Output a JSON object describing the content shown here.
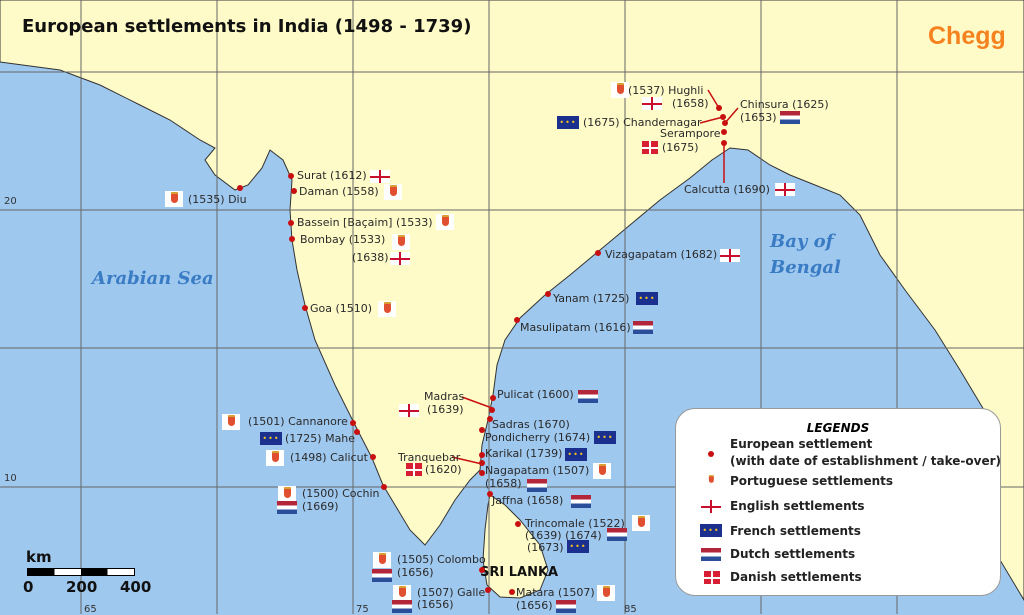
{
  "title": "European settlements in India (1498 - 1739)",
  "brand": "Chegg",
  "colors": {
    "sea": "#9fc8ef",
    "land": "#fffbc8",
    "settlement_dot": "#c81010",
    "brand": "#f5821f",
    "sea_label": "#3a7cc4"
  },
  "seas": {
    "arabian": "Arabian Sea",
    "bay_line1": "Bay of",
    "bay_line2": "Bengal"
  },
  "country_label": "SRI LANKA",
  "grid": {
    "lat_labels": [
      "20",
      "10"
    ],
    "lon_labels": [
      "65",
      "75",
      "85"
    ]
  },
  "scale": {
    "unit": "km",
    "ticks": [
      "0",
      "200",
      "400"
    ]
  },
  "settlements": [
    {
      "name": "Hughli",
      "texts": [
        "(1537) Hughli",
        "(1658)"
      ],
      "flags": [
        "portuguese",
        "english"
      ]
    },
    {
      "name": "Chandernagar",
      "texts": [
        "(1675) Chandernagar"
      ],
      "flags": [
        "french"
      ]
    },
    {
      "name": "Chinsura",
      "texts": [
        "Chinsura (1625)",
        "(1653)"
      ],
      "flags": [
        "dutch"
      ]
    },
    {
      "name": "Serampore",
      "texts": [
        "Serampore",
        "(1675)"
      ],
      "flags": [
        "danish"
      ]
    },
    {
      "name": "Calcutta",
      "texts": [
        "Calcutta (1690)"
      ],
      "flags": [
        "english"
      ]
    },
    {
      "name": "Surat",
      "texts": [
        "Surat (1612)"
      ],
      "flags": [
        "english"
      ]
    },
    {
      "name": "Daman",
      "texts": [
        "Daman (1558)"
      ],
      "flags": [
        "portuguese"
      ]
    },
    {
      "name": "Diu",
      "texts": [
        "(1535) Diu"
      ],
      "flags": [
        "portuguese"
      ]
    },
    {
      "name": "Bassein",
      "texts": [
        "Bassein [Baçaim] (1533)"
      ],
      "flags": [
        "portuguese"
      ]
    },
    {
      "name": "Bombay",
      "texts": [
        "Bombay (1533)",
        "(1638)"
      ],
      "flags": [
        "portuguese",
        "english"
      ]
    },
    {
      "name": "Goa",
      "texts": [
        "Goa (1510)"
      ],
      "flags": [
        "portuguese"
      ]
    },
    {
      "name": "Vizagapatam",
      "texts": [
        "Vizagapatam (1682)"
      ],
      "flags": [
        "english"
      ]
    },
    {
      "name": "Yanam",
      "texts": [
        "Yanam (1725)"
      ],
      "flags": [
        "french"
      ]
    },
    {
      "name": "Masulipatam",
      "texts": [
        "Masulipatam (1616)"
      ],
      "flags": [
        "dutch"
      ]
    },
    {
      "name": "Cannanore",
      "texts": [
        "(1501) Cannanore"
      ],
      "flags": [
        "portuguese"
      ]
    },
    {
      "name": "Mahe",
      "texts": [
        "(1725) Mahe"
      ],
      "flags": [
        "french"
      ]
    },
    {
      "name": "Calicut",
      "texts": [
        "(1498) Calicut"
      ],
      "flags": [
        "portuguese"
      ]
    },
    {
      "name": "Cochin",
      "texts": [
        "(1500) Cochin",
        "(1669)"
      ],
      "flags": [
        "portuguese",
        "dutch"
      ]
    },
    {
      "name": "Madras",
      "texts": [
        "Madras",
        "(1639)"
      ],
      "flags": [
        "english"
      ]
    },
    {
      "name": "Pulicat",
      "texts": [
        "Pulicat (1600)"
      ],
      "flags": [
        "dutch"
      ]
    },
    {
      "name": "Sadras",
      "texts": [
        "Sadras (1670)"
      ],
      "flags": []
    },
    {
      "name": "Pondicherry",
      "texts": [
        "Pondicherry (1674)"
      ],
      "flags": [
        "french"
      ]
    },
    {
      "name": "Karikal",
      "texts": [
        "Karikal (1739)"
      ],
      "flags": [
        "french"
      ]
    },
    {
      "name": "Tranquebar",
      "texts": [
        "Tranquebar",
        "(1620)"
      ],
      "flags": [
        "danish"
      ]
    },
    {
      "name": "Nagapatam",
      "texts": [
        "Nagapatam (1507)",
        "(1658)"
      ],
      "flags": [
        "portuguese",
        "dutch"
      ]
    },
    {
      "name": "Jaffna",
      "texts": [
        "Jaffna (1658)"
      ],
      "flags": [
        "dutch"
      ]
    },
    {
      "name": "Trincomale",
      "texts": [
        "Trincomale (1522)",
        "(1639) (1674)",
        "(1673)"
      ],
      "flags": [
        "portuguese",
        "dutch",
        "french"
      ]
    },
    {
      "name": "Colombo",
      "texts": [
        "(1505) Colombo",
        "(1656)"
      ],
      "flags": [
        "portuguese",
        "dutch"
      ]
    },
    {
      "name": "Galle",
      "texts": [
        "(1507) Galle",
        "(1656)"
      ],
      "flags": [
        "portuguese",
        "dutch"
      ]
    },
    {
      "name": "Matara",
      "texts": [
        "Matara (1507)",
        "(1656)"
      ],
      "flags": [
        "portuguese",
        "dutch"
      ]
    }
  ],
  "legend": {
    "title": "LEGENDS",
    "items": [
      {
        "icon": "settlement-dot",
        "label": "European settlement",
        "label2": "(with date of establishment / take-over)"
      },
      {
        "icon": "portuguese-flag",
        "label": "Portuguese settlements"
      },
      {
        "icon": "english-flag",
        "label": "English settlements"
      },
      {
        "icon": "french-flag",
        "label": "French settlements"
      },
      {
        "icon": "dutch-flag",
        "label": "Dutch settlements"
      },
      {
        "icon": "danish-flag",
        "label": "Danish settlements"
      }
    ]
  }
}
